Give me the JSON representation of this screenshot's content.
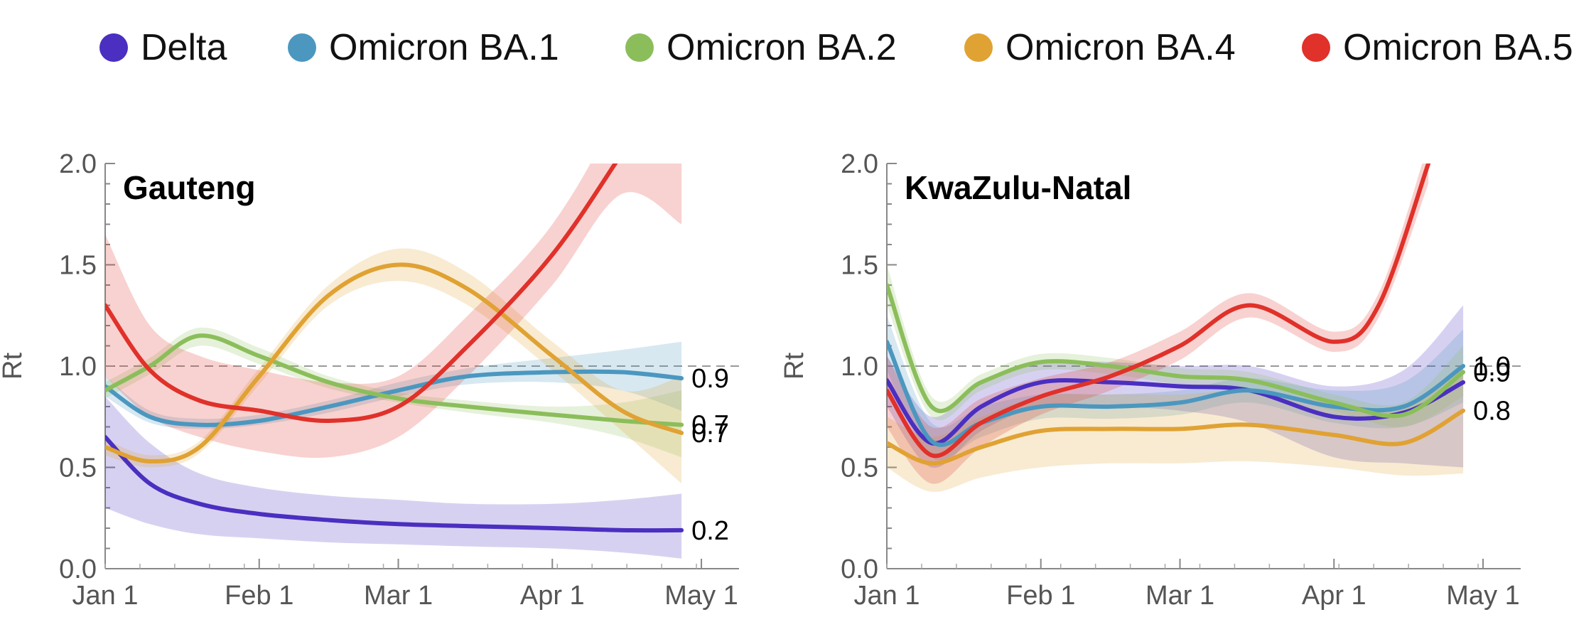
{
  "legend": [
    {
      "name": "Delta",
      "color": "#4a2fc0"
    },
    {
      "name": "Omicron BA.1",
      "color": "#4b97bf"
    },
    {
      "name": "Omicron BA.2",
      "color": "#8bbe5b"
    },
    {
      "name": "Omicron BA.4",
      "color": "#e0a233"
    },
    {
      "name": "Omicron BA.5",
      "color": "#e0312a"
    }
  ],
  "chart_data": [
    {
      "type": "line",
      "title": "Gauteng",
      "ylabel": "Rt",
      "xlabel": "",
      "ylim": [
        0,
        2
      ],
      "yticks": [
        0.0,
        0.5,
        1.0,
        1.5,
        2.0
      ],
      "ytick_labels": [
        "0.0",
        "0.5",
        "1.0",
        "1.5",
        "2.0"
      ],
      "xticks": [
        "2022-01-01",
        "2022-02-01",
        "2022-03-01",
        "2022-04-01",
        "2022-05-01"
      ],
      "xtick_labels": [
        "Jan 1",
        "Feb 1",
        "Mar 1",
        "Apr 1",
        "May 1"
      ],
      "xlim": [
        "2022-01-01",
        "2022-05-05"
      ],
      "reference_line": 1.0,
      "series": [
        {
          "name": "Delta",
          "color": "#4a2fc0",
          "end_label": "0.2",
          "x": [
            "2022-01-01",
            "2022-01-10",
            "2022-01-20",
            "2022-02-01",
            "2022-02-15",
            "2022-03-01",
            "2022-03-15",
            "2022-04-01",
            "2022-04-15",
            "2022-04-27"
          ],
          "y": [
            0.65,
            0.42,
            0.32,
            0.27,
            0.24,
            0.22,
            0.21,
            0.2,
            0.19,
            0.19
          ],
          "lower": [
            0.3,
            0.22,
            0.17,
            0.15,
            0.13,
            0.12,
            0.11,
            0.1,
            0.08,
            0.05
          ],
          "upper": [
            0.85,
            0.62,
            0.47,
            0.4,
            0.36,
            0.34,
            0.32,
            0.32,
            0.34,
            0.37
          ]
        },
        {
          "name": "Omicron BA.1",
          "color": "#4b97bf",
          "end_label": "0.9",
          "x": [
            "2022-01-01",
            "2022-01-10",
            "2022-01-20",
            "2022-02-01",
            "2022-02-15",
            "2022-03-01",
            "2022-03-15",
            "2022-04-01",
            "2022-04-15",
            "2022-04-27"
          ],
          "y": [
            0.9,
            0.75,
            0.71,
            0.73,
            0.8,
            0.88,
            0.95,
            0.97,
            0.97,
            0.94
          ],
          "lower": [
            0.85,
            0.72,
            0.69,
            0.71,
            0.77,
            0.85,
            0.91,
            0.92,
            0.88,
            0.78
          ],
          "upper": [
            0.95,
            0.78,
            0.74,
            0.76,
            0.83,
            0.92,
            0.99,
            1.04,
            1.08,
            1.12
          ]
        },
        {
          "name": "Omicron BA.2",
          "color": "#8bbe5b",
          "end_label": "0.7",
          "x": [
            "2022-01-01",
            "2022-01-10",
            "2022-01-20",
            "2022-02-01",
            "2022-02-15",
            "2022-03-01",
            "2022-03-15",
            "2022-04-01",
            "2022-04-15",
            "2022-04-27"
          ],
          "y": [
            0.88,
            1.0,
            1.15,
            1.05,
            0.92,
            0.84,
            0.8,
            0.76,
            0.73,
            0.71
          ],
          "lower": [
            0.84,
            0.96,
            1.1,
            1.01,
            0.89,
            0.82,
            0.77,
            0.72,
            0.65,
            0.55
          ],
          "upper": [
            0.92,
            1.04,
            1.19,
            1.09,
            0.95,
            0.87,
            0.83,
            0.8,
            0.82,
            0.88
          ]
        },
        {
          "name": "Omicron BA.4",
          "color": "#e0a233",
          "end_label": "0.7",
          "x": [
            "2022-01-01",
            "2022-01-10",
            "2022-01-20",
            "2022-02-01",
            "2022-02-15",
            "2022-03-01",
            "2022-03-15",
            "2022-04-01",
            "2022-04-15",
            "2022-04-27"
          ],
          "y": [
            0.6,
            0.53,
            0.6,
            0.95,
            1.35,
            1.5,
            1.38,
            1.05,
            0.78,
            0.67
          ],
          "lower": [
            0.56,
            0.5,
            0.57,
            0.91,
            1.3,
            1.42,
            1.3,
            0.98,
            0.68,
            0.42
          ],
          "upper": [
            0.64,
            0.56,
            0.63,
            0.99,
            1.4,
            1.58,
            1.46,
            1.12,
            0.88,
            0.95
          ]
        },
        {
          "name": "Omicron BA.5",
          "color": "#e0312a",
          "end_label": "",
          "x": [
            "2022-01-01",
            "2022-01-10",
            "2022-01-20",
            "2022-02-01",
            "2022-02-15",
            "2022-03-01",
            "2022-03-15",
            "2022-04-01",
            "2022-04-15",
            "2022-04-27"
          ],
          "y": [
            1.3,
            0.98,
            0.83,
            0.78,
            0.73,
            0.8,
            1.1,
            1.55,
            2.05,
            2.5
          ],
          "lower": [
            0.95,
            0.75,
            0.65,
            0.58,
            0.55,
            0.65,
            0.95,
            1.4,
            1.85,
            1.7
          ],
          "upper": [
            1.65,
            1.2,
            1.05,
            0.98,
            0.92,
            0.95,
            1.25,
            1.7,
            2.3,
            3.0
          ]
        }
      ]
    },
    {
      "type": "line",
      "title": "KwaZulu-Natal",
      "ylabel": "Rt",
      "xlabel": "",
      "ylim": [
        0,
        2
      ],
      "yticks": [
        0.0,
        0.5,
        1.0,
        1.5,
        2.0
      ],
      "ytick_labels": [
        "0.0",
        "0.5",
        "1.0",
        "1.5",
        "2.0"
      ],
      "xticks": [
        "2022-01-01",
        "2022-02-01",
        "2022-03-01",
        "2022-04-01",
        "2022-05-01"
      ],
      "xtick_labels": [
        "Jan 1",
        "Feb 1",
        "Mar 1",
        "Apr 1",
        "May 1"
      ],
      "xlim": [
        "2022-01-01",
        "2022-05-05"
      ],
      "reference_line": 1.0,
      "series": [
        {
          "name": "Delta",
          "color": "#4a2fc0",
          "end_label": "",
          "x": [
            "2022-01-01",
            "2022-01-10",
            "2022-01-20",
            "2022-02-01",
            "2022-02-15",
            "2022-03-01",
            "2022-03-15",
            "2022-04-01",
            "2022-04-15",
            "2022-04-27"
          ],
          "y": [
            0.93,
            0.62,
            0.8,
            0.92,
            0.92,
            0.9,
            0.88,
            0.75,
            0.77,
            0.92
          ],
          "lower": [
            0.8,
            0.5,
            0.68,
            0.8,
            0.8,
            0.78,
            0.72,
            0.55,
            0.52,
            0.5
          ],
          "upper": [
            1.05,
            0.75,
            0.92,
            1.02,
            1.02,
            1.0,
            1.0,
            0.9,
            0.98,
            1.3
          ]
        },
        {
          "name": "Omicron BA.1",
          "color": "#4b97bf",
          "end_label": "1.0",
          "x": [
            "2022-01-01",
            "2022-01-10",
            "2022-01-20",
            "2022-02-01",
            "2022-02-15",
            "2022-03-01",
            "2022-03-15",
            "2022-04-01",
            "2022-04-15",
            "2022-04-27"
          ],
          "y": [
            1.12,
            0.63,
            0.72,
            0.8,
            0.8,
            0.82,
            0.88,
            0.8,
            0.8,
            1.0
          ],
          "lower": [
            0.98,
            0.55,
            0.65,
            0.74,
            0.74,
            0.76,
            0.82,
            0.72,
            0.7,
            0.82
          ],
          "upper": [
            1.25,
            0.72,
            0.8,
            0.86,
            0.86,
            0.88,
            0.94,
            0.88,
            0.92,
            1.18
          ]
        },
        {
          "name": "Omicron BA.2",
          "color": "#8bbe5b",
          "end_label": "0.9",
          "x": [
            "2022-01-01",
            "2022-01-10",
            "2022-01-20",
            "2022-02-01",
            "2022-02-15",
            "2022-03-01",
            "2022-03-15",
            "2022-04-01",
            "2022-04-15",
            "2022-04-27"
          ],
          "y": [
            1.4,
            0.8,
            0.92,
            1.02,
            1.0,
            0.95,
            0.93,
            0.82,
            0.76,
            0.97
          ],
          "lower": [
            1.3,
            0.75,
            0.88,
            0.98,
            0.96,
            0.91,
            0.89,
            0.78,
            0.7,
            0.85
          ],
          "upper": [
            1.5,
            0.85,
            0.96,
            1.06,
            1.04,
            0.99,
            0.97,
            0.86,
            0.82,
            1.1
          ]
        },
        {
          "name": "Omicron BA.4",
          "color": "#e0a233",
          "end_label": "0.8",
          "x": [
            "2022-01-01",
            "2022-01-10",
            "2022-01-20",
            "2022-02-01",
            "2022-02-15",
            "2022-03-01",
            "2022-03-15",
            "2022-04-01",
            "2022-04-15",
            "2022-04-27"
          ],
          "y": [
            0.62,
            0.52,
            0.6,
            0.68,
            0.69,
            0.69,
            0.71,
            0.66,
            0.62,
            0.78
          ],
          "lower": [
            0.5,
            0.38,
            0.45,
            0.5,
            0.52,
            0.52,
            0.53,
            0.5,
            0.46,
            0.47
          ],
          "upper": [
            0.75,
            0.65,
            0.75,
            0.85,
            0.86,
            0.86,
            0.88,
            0.82,
            0.8,
            1.0
          ]
        },
        {
          "name": "Omicron BA.5",
          "color": "#e0312a",
          "end_label": "",
          "x": [
            "2022-01-01",
            "2022-01-10",
            "2022-01-20",
            "2022-02-01",
            "2022-02-15",
            "2022-03-01",
            "2022-03-15",
            "2022-04-01",
            "2022-04-10",
            "2022-04-20"
          ],
          "y": [
            0.88,
            0.56,
            0.72,
            0.85,
            0.95,
            1.1,
            1.3,
            1.12,
            1.3,
            2.0
          ],
          "lower": [
            0.7,
            0.42,
            0.6,
            0.76,
            0.88,
            1.03,
            1.24,
            1.07,
            1.24,
            1.9
          ],
          "upper": [
            1.05,
            0.7,
            0.84,
            0.94,
            1.02,
            1.17,
            1.36,
            1.17,
            1.36,
            2.1
          ]
        }
      ]
    }
  ]
}
